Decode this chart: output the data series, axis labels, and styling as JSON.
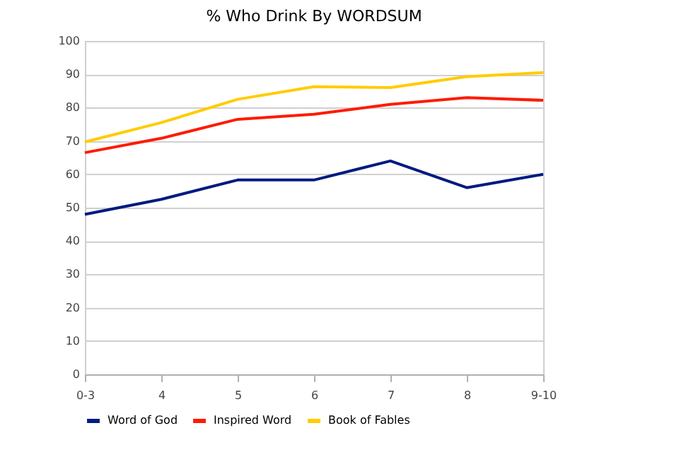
{
  "chart_data": {
    "type": "line",
    "title": "% Who Drink By WORDSUM",
    "categories": [
      "0-3",
      "4",
      "5",
      "6",
      "7",
      "8",
      "9-10"
    ],
    "series": [
      {
        "name": "Word of God",
        "color": "#001a80",
        "values": [
          48,
          52.5,
          58.3,
          58.3,
          64,
          56,
          60
        ]
      },
      {
        "name": "Inspired Word",
        "color": "#ff1a00",
        "values": [
          66.5,
          70.8,
          76.5,
          78,
          81,
          83,
          82.2
        ]
      },
      {
        "name": "Book of Fables",
        "color": "#ffcc00",
        "values": [
          69.7,
          75.5,
          82.5,
          86.3,
          86,
          89.3,
          90.5
        ]
      }
    ],
    "ylim": [
      0,
      100
    ],
    "yticks": [
      0,
      10,
      20,
      30,
      40,
      50,
      60,
      70,
      80,
      90,
      100
    ],
    "grid": "y",
    "legend": "bottom",
    "marker": "none",
    "line_style": "solid"
  }
}
